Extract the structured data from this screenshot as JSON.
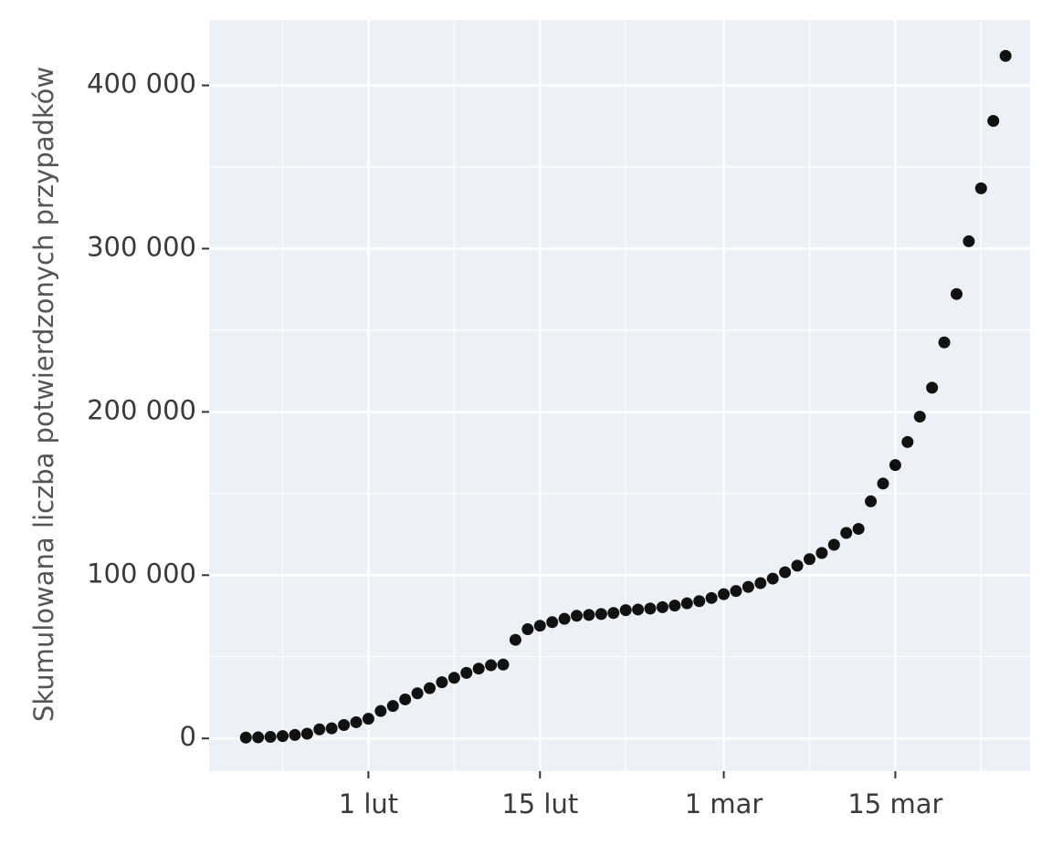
{
  "chart_data": {
    "type": "scatter",
    "y_label": "Skumulowana liczba potwierdzonych przypadków",
    "x": [
      "01-22",
      "01-23",
      "01-24",
      "01-25",
      "01-26",
      "01-27",
      "01-28",
      "01-29",
      "01-30",
      "01-31",
      "02-01",
      "02-02",
      "02-03",
      "02-04",
      "02-05",
      "02-06",
      "02-07",
      "02-08",
      "02-09",
      "02-10",
      "02-11",
      "02-12",
      "02-13",
      "02-14",
      "02-15",
      "02-16",
      "02-17",
      "02-18",
      "02-19",
      "02-20",
      "02-21",
      "02-22",
      "02-23",
      "02-24",
      "02-25",
      "02-26",
      "02-27",
      "02-28",
      "02-29",
      "03-01",
      "03-02",
      "03-03",
      "03-04",
      "03-05",
      "03-06",
      "03-07",
      "03-08",
      "03-09",
      "03-10",
      "03-11",
      "03-12",
      "03-13",
      "03-14",
      "03-15",
      "03-16",
      "03-17",
      "03-18",
      "03-19",
      "03-20",
      "03-21",
      "03-22",
      "03-23",
      "03-24"
    ],
    "values": [
      555,
      654,
      941,
      1434,
      2118,
      2927,
      5578,
      6166,
      8234,
      9927,
      12038,
      16787,
      19887,
      23898,
      27643,
      30802,
      34395,
      37129,
      40150,
      42762,
      44802,
      45221,
      60368,
      66885,
      69030,
      71224,
      73258,
      75136,
      75639,
      76197,
      76819,
      78572,
      78958,
      79561,
      80406,
      81388,
      82746,
      84112,
      86011,
      88369,
      90306,
      92840,
      95120,
      97886,
      101801,
      105847,
      109821,
      113590,
      118620,
      125875,
      128352,
      145205,
      156101,
      167454,
      181574,
      197102,
      214821,
      242570,
      272208,
      304507,
      336953,
      378235,
      418045
    ],
    "color": "#111111",
    "xlim": [
      "01-19",
      "03-26"
    ],
    "xticks": [
      {
        "value": "02-01",
        "label": "1 lut"
      },
      {
        "value": "02-15",
        "label": "15 lut"
      },
      {
        "value": "03-01",
        "label": "1 mar"
      },
      {
        "value": "03-15",
        "label": "15 mar"
      }
    ],
    "x_minor_ticks": [
      "01-25",
      "02-08",
      "02-22",
      "03-08",
      "03-22"
    ],
    "ylim": [
      -20000,
      440000
    ],
    "yticks": [
      0,
      {
        "value": 100000,
        "label": "100 000"
      },
      {
        "value": 200000,
        "label": "200 000"
      },
      {
        "value": 300000,
        "label": "300 000"
      },
      {
        "value": 400000,
        "label": "400 000"
      }
    ],
    "y_minor_ticks": [
      50000,
      150000,
      250000,
      350000
    ],
    "grid": true
  }
}
